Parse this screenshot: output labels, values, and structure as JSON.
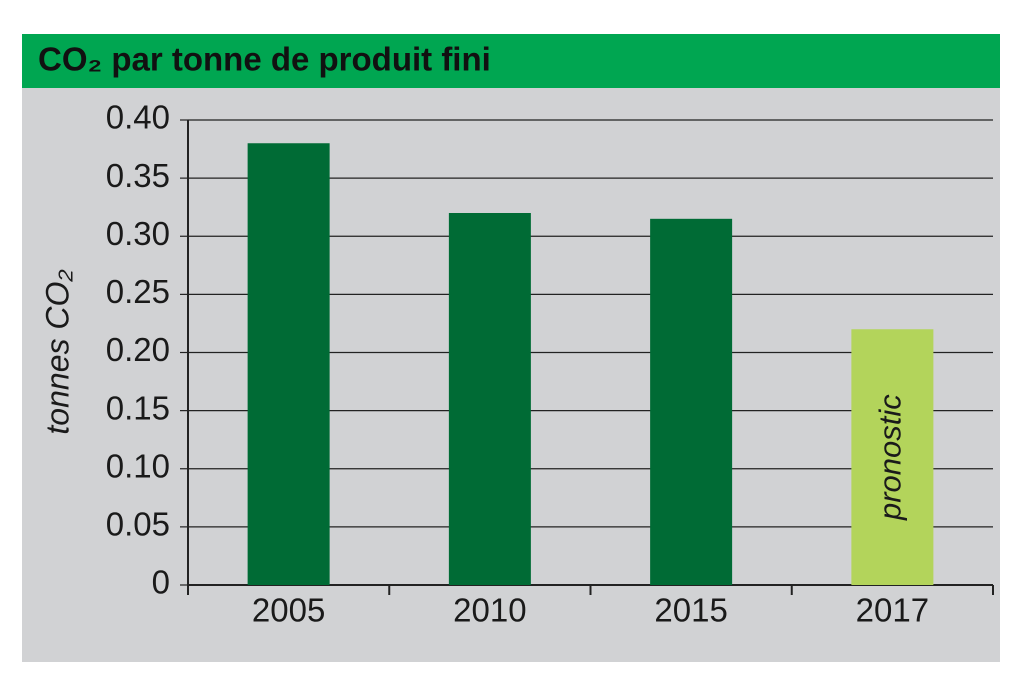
{
  "chart_data": {
    "type": "bar",
    "title": "CO₂ par tonne de produit fini",
    "y_label": "tonnes CO₂",
    "categories": [
      "2005",
      "2010",
      "2015",
      "2017"
    ],
    "values": [
      0.38,
      0.32,
      0.315,
      0.22
    ],
    "colors": [
      "#006b35",
      "#006b35",
      "#006b35",
      "#b3d45b"
    ],
    "annotation": "pronostic",
    "ylim": [
      0,
      0.4
    ],
    "yticks": [
      0,
      0.05,
      {
        "value": 0.1,
        "label": "0.10"
      },
      0.15,
      {
        "value": 0.2,
        "label": "0.20"
      },
      0.25,
      {
        "value": 0.3,
        "label": "0.30"
      },
      0.35,
      {
        "value": 0.4,
        "label": "0.40"
      }
    ],
    "grid": true
  }
}
